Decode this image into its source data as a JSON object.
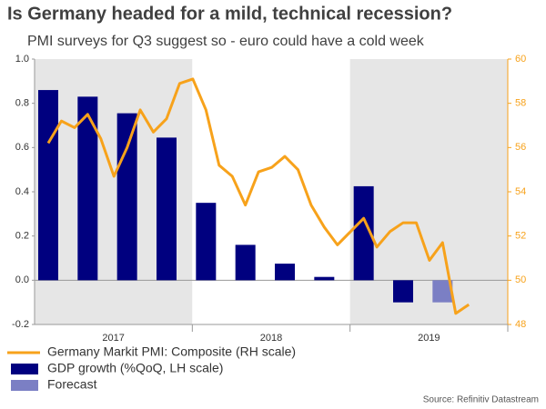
{
  "chart_data": {
    "type": "bar-line",
    "title": "Is Germany headed for a mild, technical recession?",
    "subtitle": "PMI surveys for Q3 suggest so - euro could have a cold week",
    "source": "Source: Refinitiv Datastream",
    "x_labels": [
      "2017",
      "2018",
      "2019"
    ],
    "ylim": [
      -0.2,
      1.0
    ],
    "yticks": [
      {
        "value": 1.0,
        "label": "1.0"
      },
      0.8,
      0.6,
      0.4,
      0.2,
      {
        "value": 0,
        "label": "0.0"
      },
      -0.2
    ],
    "y2lim": [
      48,
      60
    ],
    "y2ticks": [
      48,
      50,
      52,
      54,
      56,
      58,
      60
    ],
    "series": [
      {
        "name": "Germany Markit PMI: Composite (RH scale)",
        "type": "line",
        "axis": "y2",
        "color": "#f7a21b",
        "values": [
          56.2,
          57.2,
          56.9,
          57.5,
          56.4,
          54.7,
          56.0,
          57.7,
          56.7,
          57.3,
          58.9,
          59.1,
          57.7,
          55.2,
          54.7,
          53.4,
          54.9,
          55.1,
          55.6,
          55.0,
          53.4,
          52.4,
          51.6,
          52.2,
          52.8,
          51.5,
          52.2,
          52.6,
          52.6,
          50.9,
          51.7,
          48.5,
          48.9
        ]
      },
      {
        "name": "GDP growth (%QoQ, LH scale)",
        "type": "bar",
        "color": "#00007f",
        "values": [
          0.86,
          null,
          null,
          0.83,
          null,
          null,
          0.755,
          null,
          null,
          0.645,
          null,
          null,
          0.35,
          null,
          null,
          0.16,
          null,
          null,
          0.075,
          null,
          null,
          0.015,
          null,
          null,
          0.425,
          null,
          null,
          -0.1,
          null,
          null,
          null,
          null,
          null
        ]
      },
      {
        "name": "Forecast",
        "type": "bar",
        "color": "#7b7fc4",
        "values": [
          null,
          null,
          null,
          null,
          null,
          null,
          null,
          null,
          null,
          null,
          null,
          null,
          null,
          null,
          null,
          null,
          null,
          null,
          null,
          null,
          null,
          null,
          null,
          null,
          null,
          null,
          null,
          null,
          null,
          null,
          -0.1,
          null,
          null
        ]
      }
    ]
  }
}
